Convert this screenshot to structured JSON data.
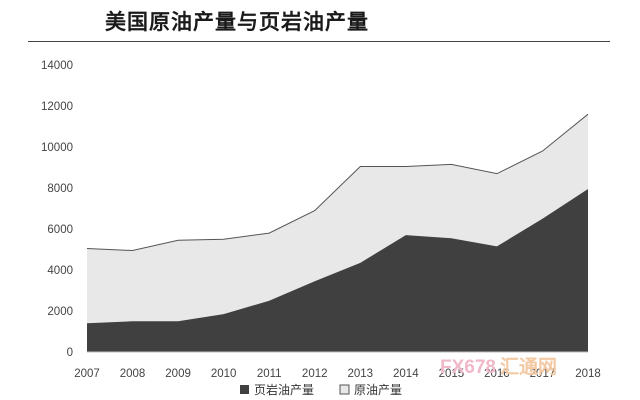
{
  "title": "美国原油产量与页岩油产量",
  "watermark": {
    "brand": "FX678",
    "cn": "汇通网"
  },
  "colors": {
    "shale": "#404040",
    "crude": "#e8e8e8",
    "crude_stroke": "#555555",
    "axis": "#bfbfbf"
  },
  "chart_data": {
    "type": "area",
    "x": [
      "2007",
      "2008",
      "2009",
      "2010",
      "2011",
      "2012",
      "2013",
      "2014",
      "2015",
      "2016",
      "2017",
      "2018"
    ],
    "series": [
      {
        "name": "页岩油产量",
        "values": [
          1400,
          1500,
          1500,
          1850,
          2500,
          3450,
          4350,
          5700,
          5550,
          5150,
          6500,
          7950
        ]
      },
      {
        "name": "原油产量",
        "values": [
          5050,
          4950,
          5450,
          5500,
          5800,
          6900,
          9050,
          9050,
          9150,
          8700,
          9800,
          11600
        ]
      }
    ],
    "ylim": [
      0,
      14000
    ],
    "yticks": [
      "0",
      "2000",
      "4000",
      "6000",
      "8000",
      "10000",
      "12000",
      "14000"
    ],
    "legend": "bottom",
    "grid": false
  }
}
